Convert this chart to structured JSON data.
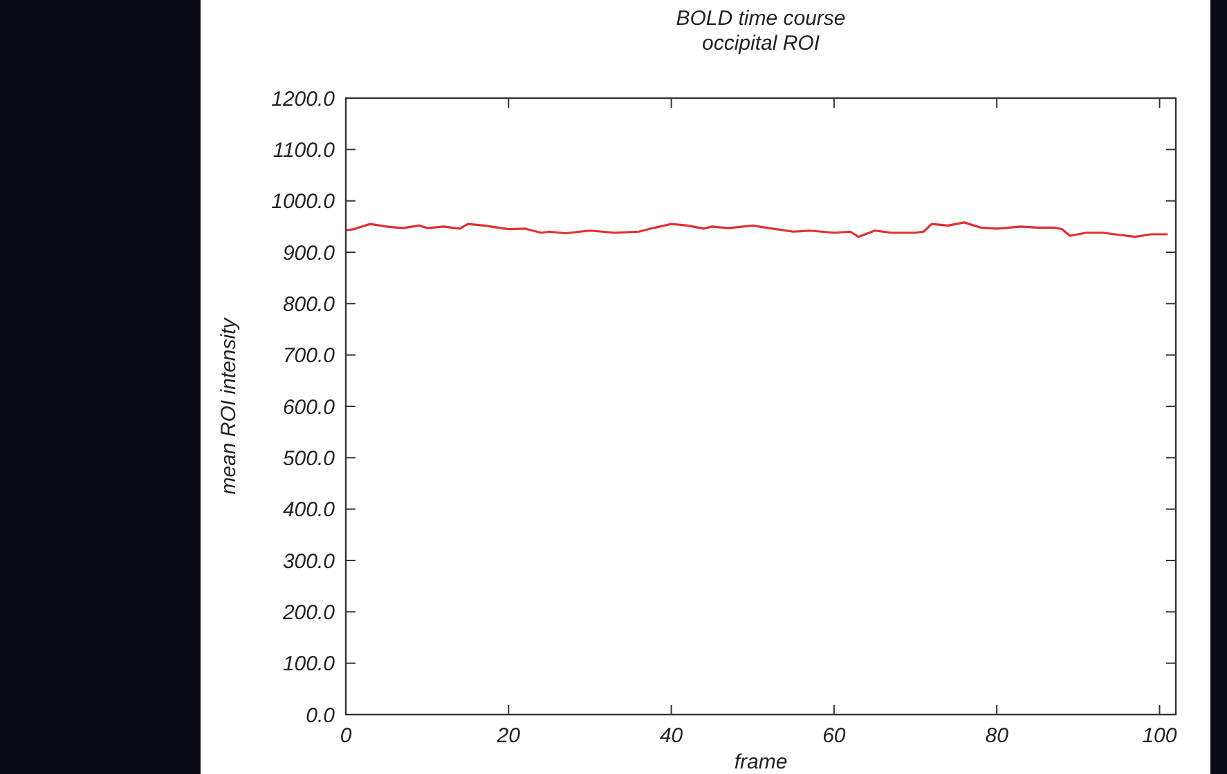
{
  "chart_data": {
    "type": "line",
    "title": "BOLD time course",
    "subtitle": "occipital ROI",
    "xlabel": "frame",
    "ylabel": "mean ROI intensity",
    "xlim": [
      0,
      102
    ],
    "xticks": [
      0,
      20,
      40,
      60,
      80,
      100
    ],
    "ylim": [
      0,
      1200
    ],
    "yticks": [
      {
        "value": 0,
        "label": "0.0"
      },
      {
        "value": 100,
        "label": "100.0"
      },
      {
        "value": 200,
        "label": "200.0"
      },
      {
        "value": 300,
        "label": "300.0"
      },
      {
        "value": 400,
        "label": "400.0"
      },
      {
        "value": 500,
        "label": "500.0"
      },
      {
        "value": 600,
        "label": "600.0"
      },
      {
        "value": 700,
        "label": "700.0"
      },
      {
        "value": 800,
        "label": "800.0"
      },
      {
        "value": 900,
        "label": "900.0"
      },
      {
        "value": 1000,
        "label": "1000.0"
      },
      {
        "value": 1100,
        "label": "1100.0"
      },
      {
        "value": 1200,
        "label": "1200.0"
      }
    ],
    "grid": false,
    "marker": "none",
    "line_style": "solid",
    "series": [
      {
        "color": "#e03030",
        "x": [
          0,
          1,
          3,
          5,
          7,
          9,
          10,
          12,
          14,
          15,
          17,
          20,
          22,
          24,
          25,
          27,
          30,
          33,
          36,
          38,
          40,
          42,
          44,
          45,
          47,
          50,
          52,
          55,
          57,
          60,
          62,
          63,
          65,
          67,
          70,
          71,
          72,
          74,
          76,
          78,
          80,
          83,
          85,
          87,
          88,
          89,
          91,
          93,
          95,
          97,
          99,
          101
        ],
        "values": [
          943,
          945,
          955,
          950,
          947,
          952,
          947,
          950,
          946,
          955,
          952,
          945,
          946,
          938,
          940,
          937,
          942,
          938,
          940,
          948,
          955,
          952,
          946,
          950,
          947,
          952,
          947,
          940,
          942,
          938,
          940,
          930,
          942,
          938,
          938,
          940,
          955,
          952,
          958,
          948,
          946,
          950,
          948,
          948,
          945,
          932,
          938,
          938,
          934,
          930,
          935,
          935
        ]
      }
    ]
  }
}
